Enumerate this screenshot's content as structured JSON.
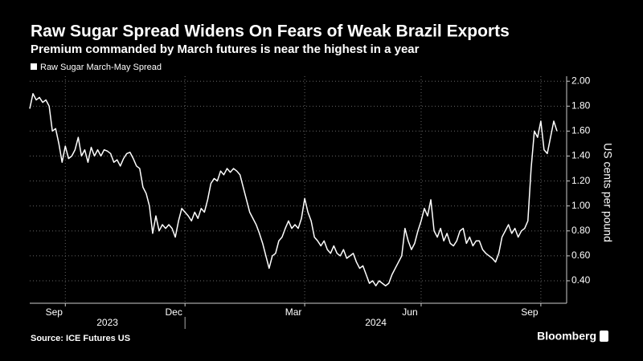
{
  "chart_data": {
    "type": "line",
    "title": "Raw Sugar Spread Widens On Fears of Weak Brazil Exports",
    "subtitle": "Premium commanded by March futures is near the highest in a year",
    "y_axis_label": "US cents per pound",
    "source": "Source: ICE Futures US",
    "brand": "Bloomberg",
    "year_labels": [
      "2023",
      "2024"
    ],
    "series": [
      {
        "name": "Raw Sugar March-May Spread",
        "color": "#ffffff",
        "values": [
          1.78,
          1.9,
          1.85,
          1.87,
          1.83,
          1.85,
          1.8,
          1.6,
          1.62,
          1.5,
          1.35,
          1.48,
          1.38,
          1.4,
          1.45,
          1.55,
          1.4,
          1.45,
          1.35,
          1.47,
          1.4,
          1.45,
          1.4,
          1.45,
          1.44,
          1.42,
          1.35,
          1.37,
          1.32,
          1.38,
          1.42,
          1.43,
          1.38,
          1.32,
          1.3,
          1.15,
          1.1,
          1.0,
          0.78,
          0.92,
          0.8,
          0.85,
          0.82,
          0.85,
          0.82,
          0.75,
          0.88,
          0.98,
          0.95,
          0.92,
          0.88,
          0.95,
          0.9,
          0.98,
          0.95,
          1.05,
          1.18,
          1.22,
          1.2,
          1.28,
          1.25,
          1.3,
          1.27,
          1.3,
          1.28,
          1.25,
          1.15,
          1.05,
          0.95,
          0.9,
          0.85,
          0.78,
          0.7,
          0.6,
          0.5,
          0.6,
          0.62,
          0.72,
          0.75,
          0.82,
          0.88,
          0.82,
          0.85,
          0.82,
          0.9,
          1.06,
          0.95,
          0.88,
          0.75,
          0.72,
          0.68,
          0.72,
          0.65,
          0.62,
          0.68,
          0.62,
          0.6,
          0.65,
          0.58,
          0.6,
          0.62,
          0.55,
          0.5,
          0.52,
          0.45,
          0.38,
          0.4,
          0.36,
          0.4,
          0.38,
          0.36,
          0.38,
          0.45,
          0.5,
          0.55,
          0.6,
          0.82,
          0.72,
          0.65,
          0.7,
          0.8,
          0.88,
          0.98,
          0.92,
          1.05,
          0.8,
          0.75,
          0.82,
          0.72,
          0.78,
          0.7,
          0.68,
          0.72,
          0.8,
          0.82,
          0.7,
          0.75,
          0.68,
          0.72,
          0.72,
          0.65,
          0.62,
          0.6,
          0.58,
          0.55,
          0.62,
          0.75,
          0.8,
          0.85,
          0.78,
          0.82,
          0.75,
          0.8,
          0.82,
          0.88,
          1.3,
          1.6,
          1.55,
          1.68,
          1.45,
          1.42,
          1.55,
          1.68,
          1.6
        ]
      }
    ],
    "xticks": [
      {
        "value": 11,
        "label": "Sep"
      },
      {
        "value": 48,
        "label": "Dec"
      },
      {
        "value": 85,
        "label": "Mar"
      },
      {
        "value": 121,
        "label": "Jun"
      },
      {
        "value": 158,
        "label": "Sep"
      }
    ],
    "ylim": [
      0.22,
      2.04
    ],
    "yticks": [
      {
        "value": 0.4,
        "label": "0.40"
      },
      {
        "value": 0.6,
        "label": "0.60"
      },
      {
        "value": 0.8,
        "label": "0.80"
      },
      {
        "value": 1,
        "label": "1.00"
      },
      {
        "value": 1.2,
        "label": "1.20"
      },
      {
        "value": 1.4,
        "label": "1.40"
      },
      {
        "value": 1.6,
        "label": "1.60"
      },
      {
        "value": 1.8,
        "label": "1.80"
      },
      {
        "value": 2,
        "label": "2.00"
      }
    ],
    "grid": true
  }
}
